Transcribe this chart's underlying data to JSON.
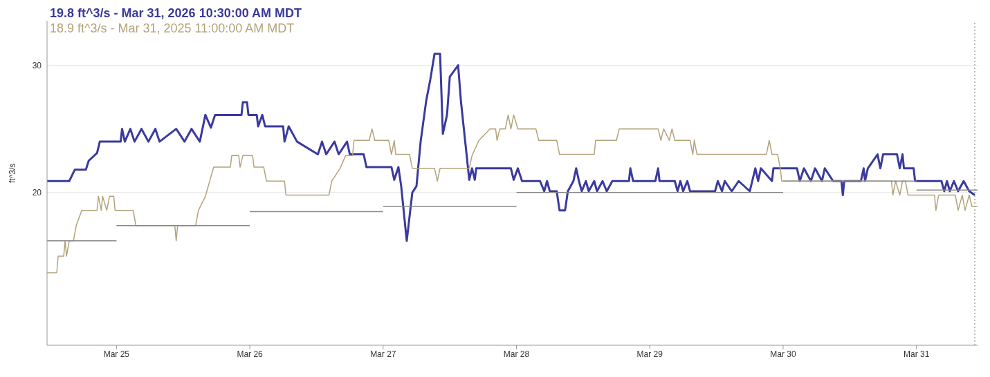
{
  "chart_data": {
    "type": "line",
    "ylabel": "ft^3/s",
    "annotations": [
      "19.8 ft^3/s - Mar 31, 2026 10:30:00 AM MDT",
      "18.9 ft^3/s - Mar 31, 2025 11:00:00 AM MDT"
    ],
    "xlim": [
      "2026-03-24T11:30",
      "2026-03-31T11:00"
    ],
    "xticks": [
      {
        "value": "2026-03-25",
        "label": "Mar 25"
      },
      {
        "value": "2026-03-26",
        "label": "Mar 26"
      },
      {
        "value": "2026-03-27",
        "label": "Mar 27"
      },
      {
        "value": "2026-03-28",
        "label": "Mar 28"
      },
      {
        "value": "2026-03-29",
        "label": "Mar 29"
      },
      {
        "value": "2026-03-30",
        "label": "Mar 30"
      },
      {
        "value": "2026-03-31",
        "label": "Mar 31"
      }
    ],
    "ylim": [
      8,
      33.5
    ],
    "yticks": [
      20,
      30
    ],
    "grid": "y",
    "marker": "none",
    "line_style": "solid",
    "ref_lines": [
      {
        "axis": "x",
        "value": "2026-03-31T10:30",
        "label": null,
        "color": "#bbbbbb",
        "line_style": "dotted"
      }
    ],
    "series": [
      {
        "color": "#3a3a9e",
        "x": [
          "2026-03-24T11:30",
          "2026-03-24T15:30",
          "2026-03-24T16:30",
          "2026-03-24T18:30",
          "2026-03-24T19:00",
          "2026-03-24T20:30",
          "2026-03-24T21:00",
          "2026-03-25T00:45",
          "2026-03-25T01:00",
          "2026-03-25T01:30",
          "2026-03-25T02:30",
          "2026-03-25T03:15",
          "2026-03-25T04:30",
          "2026-03-25T05:45",
          "2026-03-25T07:00",
          "2026-03-25T07:45",
          "2026-03-25T10:45",
          "2026-03-25T12:15",
          "2026-03-25T13:30",
          "2026-03-25T15:00",
          "2026-03-25T16:00",
          "2026-03-25T17:00",
          "2026-03-25T17:45",
          "2026-03-25T22:30",
          "2026-03-25T22:45",
          "2026-03-25T23:30",
          "2026-03-25T23:45",
          "2026-03-26T01:15",
          "2026-03-26T01:30",
          "2026-03-26T02:15",
          "2026-03-26T02:45",
          "2026-03-26T06:00",
          "2026-03-26T06:15",
          "2026-03-26T07:00",
          "2026-03-26T08:30",
          "2026-03-26T12:15",
          "2026-03-26T13:00",
          "2026-03-26T13:45",
          "2026-03-26T15:15",
          "2026-03-26T16:00",
          "2026-03-26T17:30",
          "2026-03-26T18:00",
          "2026-03-26T20:30",
          "2026-03-26T21:00",
          "2026-03-27T01:30",
          "2026-03-27T02:00",
          "2026-03-27T02:45",
          "2026-03-27T03:15",
          "2026-03-27T04:15",
          "2026-03-27T05:15",
          "2026-03-27T06:00",
          "2026-03-27T06:45",
          "2026-03-27T07:45",
          "2026-03-27T08:30",
          "2026-03-27T09:15",
          "2026-03-27T10:15",
          "2026-03-27T10:45",
          "2026-03-27T11:30",
          "2026-03-27T12:00",
          "2026-03-27T13:30",
          "2026-03-27T14:00",
          "2026-03-27T14:45",
          "2026-03-27T15:30",
          "2026-03-27T16:00",
          "2026-03-27T16:30",
          "2026-03-27T16:45",
          "2026-03-27T23:00",
          "2026-03-27T23:30",
          "2026-03-28T00:15",
          "2026-03-28T01:00",
          "2026-03-28T04:15",
          "2026-03-28T05:00",
          "2026-03-28T05:30",
          "2026-03-28T06:00",
          "2026-03-28T07:15",
          "2026-03-28T07:45",
          "2026-03-28T08:45",
          "2026-03-28T09:15",
          "2026-03-28T10:15",
          "2026-03-28T10:45",
          "2026-03-28T11:15",
          "2026-03-28T11:45",
          "2026-03-28T12:30",
          "2026-03-28T13:00",
          "2026-03-28T14:00",
          "2026-03-28T14:30",
          "2026-03-28T15:30",
          "2026-03-28T16:15",
          "2026-03-28T17:15",
          "2026-03-28T20:15",
          "2026-03-28T20:30",
          "2026-03-28T21:00",
          "2026-03-29T01:00",
          "2026-03-29T01:30",
          "2026-03-29T01:45",
          "2026-03-29T04:30",
          "2026-03-29T05:00",
          "2026-03-29T05:30",
          "2026-03-29T06:00",
          "2026-03-29T06:45",
          "2026-03-29T07:15",
          "2026-03-29T11:45",
          "2026-03-29T12:15",
          "2026-03-29T13:00",
          "2026-03-29T13:30",
          "2026-03-29T14:45",
          "2026-03-29T16:00",
          "2026-03-29T18:00",
          "2026-03-29T19:00",
          "2026-03-29T19:30",
          "2026-03-29T20:00",
          "2026-03-29T22:00",
          "2026-03-29T22:15",
          "2026-03-30T02:30",
          "2026-03-30T03:00",
          "2026-03-30T03:45",
          "2026-03-30T05:00",
          "2026-03-30T05:45",
          "2026-03-30T07:00",
          "2026-03-30T07:30",
          "2026-03-30T09:00",
          "2026-03-30T10:30",
          "2026-03-30T10:45",
          "2026-03-30T11:00",
          "2026-03-30T14:00",
          "2026-03-30T14:30",
          "2026-03-30T14:45",
          "2026-03-30T15:15",
          "2026-03-30T17:00",
          "2026-03-30T17:30",
          "2026-03-30T18:00",
          "2026-03-30T20:30",
          "2026-03-30T21:00",
          "2026-03-30T21:30",
          "2026-03-30T21:45",
          "2026-03-30T23:30",
          "2026-03-30T23:45",
          "2026-03-31T04:30",
          "2026-03-31T05:00",
          "2026-03-31T05:30",
          "2026-03-31T06:00",
          "2026-03-31T06:45",
          "2026-03-31T07:30",
          "2026-03-31T08:30",
          "2026-03-31T09:30",
          "2026-03-31T10:30"
        ],
        "values": [
          20.9,
          20.9,
          21.8,
          21.8,
          22.5,
          23.1,
          24.0,
          24.0,
          25.0,
          24.0,
          25.0,
          24.0,
          25.0,
          24.0,
          25.0,
          24.0,
          25.0,
          24.0,
          25.0,
          24.0,
          26.1,
          25.1,
          26.1,
          26.1,
          27.1,
          27.1,
          26.1,
          26.1,
          25.2,
          26.1,
          25.2,
          25.2,
          24.0,
          25.2,
          24.0,
          23.0,
          24.0,
          23.0,
          24.0,
          23.0,
          24.0,
          23.0,
          23.0,
          22.0,
          22.0,
          21.0,
          22.0,
          20.5,
          16.2,
          20.0,
          20.5,
          24.0,
          27.2,
          28.9,
          30.9,
          30.9,
          24.6,
          26.1,
          29.1,
          30.0,
          27.2,
          24.1,
          21.0,
          21.9,
          21.0,
          21.9,
          21.9,
          21.0,
          21.9,
          20.9,
          20.9,
          20.1,
          20.9,
          20.1,
          20.1,
          18.6,
          18.6,
          20.1,
          20.9,
          21.9,
          20.9,
          20.1,
          20.9,
          20.1,
          20.9,
          20.1,
          20.9,
          20.1,
          20.9,
          20.9,
          21.9,
          20.9,
          20.9,
          21.9,
          20.9,
          20.9,
          20.1,
          20.9,
          20.1,
          20.9,
          20.1,
          20.1,
          20.9,
          20.1,
          20.9,
          20.1,
          20.9,
          20.1,
          21.9,
          20.9,
          21.9,
          20.9,
          21.9,
          21.9,
          20.9,
          21.9,
          20.9,
          21.9,
          20.9,
          21.9,
          20.9,
          20.9,
          19.8,
          20.9,
          20.9,
          21.9,
          20.9,
          21.9,
          23.0,
          21.9,
          23.0,
          23.0,
          21.9,
          23.0,
          21.9,
          21.9,
          20.9,
          20.9,
          20.1,
          20.9,
          20.1,
          20.9,
          20.1,
          20.9,
          20.1,
          19.8
        ]
      },
      {
        "color": "#b3a37a",
        "x": [
          "2026-03-24T11:30",
          "2026-03-24T13:15",
          "2026-03-24T13:30",
          "2026-03-24T14:30",
          "2026-03-24T14:45",
          "2026-03-24T15:00",
          "2026-03-24T15:30",
          "2026-03-24T16:15",
          "2026-03-24T16:45",
          "2026-03-24T17:45",
          "2026-03-24T20:30",
          "2026-03-24T20:45",
          "2026-03-24T21:15",
          "2026-03-24T21:30",
          "2026-03-24T22:15",
          "2026-03-24T22:45",
          "2026-03-24T23:30",
          "2026-03-24T23:45",
          "2026-03-25T03:00",
          "2026-03-25T03:30",
          "2026-03-25T10:30",
          "2026-03-25T10:45",
          "2026-03-25T11:00",
          "2026-03-25T14:15",
          "2026-03-25T14:45",
          "2026-03-25T16:00",
          "2026-03-25T17:30",
          "2026-03-25T20:30",
          "2026-03-25T20:45",
          "2026-03-25T22:00",
          "2026-03-25T22:15",
          "2026-03-25T22:45",
          "2026-03-26T00:30",
          "2026-03-26T00:45",
          "2026-03-26T02:30",
          "2026-03-26T03:00",
          "2026-03-26T06:15",
          "2026-03-26T06:30",
          "2026-03-26T14:15",
          "2026-03-26T14:45",
          "2026-03-26T16:15",
          "2026-03-26T17:15",
          "2026-03-26T18:30",
          "2026-03-26T18:45",
          "2026-03-26T21:30",
          "2026-03-26T22:00",
          "2026-03-26T22:30",
          "2026-03-27T01:00",
          "2026-03-27T01:30",
          "2026-03-27T02:00",
          "2026-03-27T02:15",
          "2026-03-27T04:45",
          "2026-03-27T05:15",
          "2026-03-27T09:15",
          "2026-03-27T09:45",
          "2026-03-27T10:15",
          "2026-03-27T15:30",
          "2026-03-27T16:00",
          "2026-03-27T17:15",
          "2026-03-27T19:15",
          "2026-03-27T20:15",
          "2026-03-27T20:30",
          "2026-03-27T21:00",
          "2026-03-27T22:00",
          "2026-03-27T22:30",
          "2026-03-27T23:00",
          "2026-03-27T23:30",
          "2026-03-28T00:15",
          "2026-03-28T03:30",
          "2026-03-28T04:00",
          "2026-03-28T07:15",
          "2026-03-28T07:45",
          "2026-03-28T14:00",
          "2026-03-28T14:15",
          "2026-03-28T18:00",
          "2026-03-28T18:30",
          "2026-03-29T01:30",
          "2026-03-29T02:00",
          "2026-03-29T02:30",
          "2026-03-29T03:30",
          "2026-03-29T04:00",
          "2026-03-29T04:30",
          "2026-03-29T07:15",
          "2026-03-29T07:45",
          "2026-03-29T08:00",
          "2026-03-29T08:30",
          "2026-03-29T21:00",
          "2026-03-29T21:30",
          "2026-03-29T22:00",
          "2026-03-29T23:00",
          "2026-03-29T23:30",
          "2026-03-29T23:45",
          "2026-03-30T19:30",
          "2026-03-30T19:45",
          "2026-03-30T20:15",
          "2026-03-30T21:00",
          "2026-03-30T21:30",
          "2026-03-30T22:00",
          "2026-03-30T22:30",
          "2026-03-31T03:15",
          "2026-03-31T03:30",
          "2026-03-31T04:00",
          "2026-03-31T07:00",
          "2026-03-31T07:30",
          "2026-03-31T08:15",
          "2026-03-31T08:45",
          "2026-03-31T09:30",
          "2026-03-31T10:00",
          "2026-03-31T11:00"
        ],
        "values": [
          13.7,
          13.7,
          15.0,
          15.0,
          16.2,
          15.0,
          16.2,
          16.2,
          17.4,
          18.6,
          18.6,
          19.7,
          18.6,
          19.7,
          18.6,
          19.7,
          19.7,
          18.6,
          18.6,
          17.4,
          17.4,
          16.2,
          17.4,
          17.4,
          18.6,
          19.7,
          22.0,
          22.0,
          22.9,
          22.9,
          22.0,
          22.9,
          22.9,
          22.0,
          22.0,
          20.9,
          20.9,
          19.8,
          19.8,
          20.9,
          21.9,
          22.9,
          22.9,
          24.1,
          24.1,
          25.0,
          24.1,
          24.1,
          23.0,
          24.1,
          23.0,
          23.0,
          21.9,
          21.9,
          20.9,
          21.9,
          21.9,
          22.9,
          24.1,
          25.0,
          25.0,
          24.1,
          25.0,
          25.0,
          26.1,
          25.0,
          26.1,
          25.0,
          25.0,
          24.1,
          24.1,
          23.0,
          23.0,
          24.1,
          24.1,
          25.0,
          25.0,
          24.1,
          25.0,
          24.1,
          25.0,
          24.1,
          24.1,
          23.0,
          24.1,
          23.0,
          23.0,
          24.1,
          23.0,
          23.0,
          21.9,
          20.9,
          20.9,
          19.8,
          20.9,
          19.8,
          20.9,
          20.9,
          19.8,
          19.8,
          18.6,
          19.8,
          19.8,
          18.6,
          19.8,
          18.6,
          19.8,
          18.9,
          18.9
        ]
      },
      {
        "color": "#888888",
        "x": [
          "2026-03-24T11:30",
          "2026-03-25T00:00"
        ],
        "values": [
          16.2,
          16.2
        ]
      },
      {
        "color": "#888888",
        "x": [
          "2026-03-25T00:00",
          "2026-03-26T00:00"
        ],
        "values": [
          17.4,
          17.4
        ]
      },
      {
        "color": "#888888",
        "x": [
          "2026-03-26T00:00",
          "2026-03-27T00:00"
        ],
        "values": [
          18.5,
          18.5
        ]
      },
      {
        "color": "#888888",
        "x": [
          "2026-03-27T00:00",
          "2026-03-28T00:00"
        ],
        "values": [
          18.9,
          18.9
        ]
      },
      {
        "color": "#888888",
        "x": [
          "2026-03-28T00:00",
          "2026-03-29T00:00",
          "2026-03-30T00:00"
        ],
        "values": [
          20.0,
          20.0,
          20.0
        ]
      },
      {
        "color": "#888888",
        "x": [
          "2026-03-30T00:00",
          "2026-03-31T00:00"
        ],
        "values": [
          20.9,
          20.9
        ]
      },
      {
        "color": "#888888",
        "x": [
          "2026-03-31T00:00",
          "2026-03-31T11:00"
        ],
        "values": [
          20.2,
          20.2
        ]
      }
    ]
  }
}
